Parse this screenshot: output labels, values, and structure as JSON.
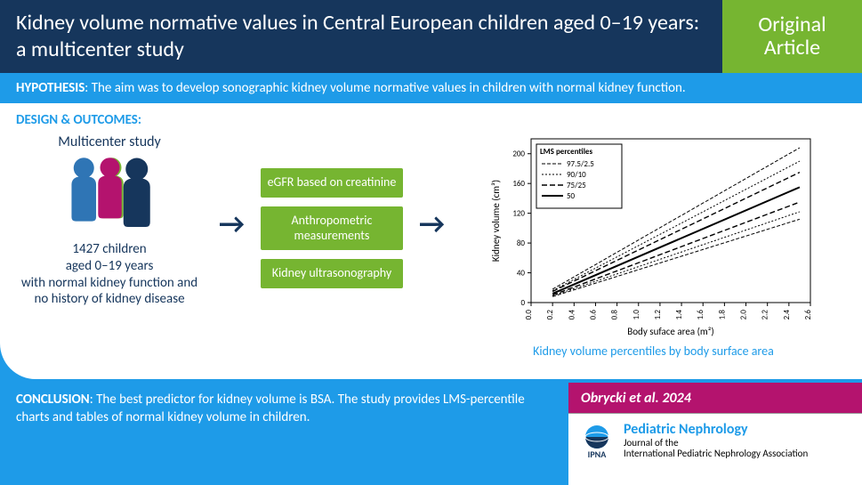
{
  "header": {
    "title": "Kidney volume normative values in Central European children aged 0–19 years: a multicenter study",
    "badge_line1": "Original",
    "badge_line2": "Article"
  },
  "hypothesis": {
    "label": "HYPOTHESIS",
    "text": ": The aim was to develop sonographic kidney volume normative values in children with normal kidney function."
  },
  "design": {
    "label": "DESIGN & OUTCOMES:",
    "study_title": "Multicenter study",
    "study_desc": "1427 children\naged 0–19 years\nwith normal kidney function and no history of kidney disease",
    "methods": [
      "eGFR based on creatinine",
      "Anthropometric measurements",
      "Kidney ultrasonography"
    ],
    "people_colors": {
      "back": "#76b531",
      "left": "#2f75b5",
      "mid": "#b4136e",
      "right": "#16365c"
    }
  },
  "chart": {
    "xlabel": "Body suface area (m²)",
    "ylabel": "Kidney volume (cm³)",
    "xlim": [
      0.0,
      2.6
    ],
    "ylim": [
      0,
      220
    ],
    "xticks": [
      0.0,
      0.2,
      0.4,
      0.6,
      0.8,
      1.0,
      1.2,
      1.4,
      1.6,
      1.8,
      2.0,
      2.2,
      2.4,
      2.6
    ],
    "yticks": [
      0,
      40,
      80,
      120,
      160,
      200
    ],
    "legend_title": "LMS percentiles",
    "series": [
      {
        "name": "97.5/2.5",
        "dash": "4,2",
        "width": 1,
        "lines": [
          {
            "y1": 18,
            "y2": 208
          },
          {
            "y1": 8,
            "y2": 112
          }
        ]
      },
      {
        "name": "90/10",
        "dash": "2,2",
        "width": 1,
        "lines": [
          {
            "y1": 16,
            "y2": 190
          },
          {
            "y1": 9,
            "y2": 122
          }
        ]
      },
      {
        "name": "75/25",
        "dash": "6,3",
        "width": 1.4,
        "lines": [
          {
            "y1": 15,
            "y2": 175
          },
          {
            "y1": 10,
            "y2": 135
          }
        ]
      },
      {
        "name": "50",
        "dash": "",
        "width": 2,
        "lines": [
          {
            "y1": 12,
            "y2": 155
          }
        ]
      }
    ],
    "x_start": 0.2,
    "x_end": 2.5,
    "axis_color": "#000",
    "line_color": "#000",
    "label_fontsize": 11,
    "tick_fontsize": 9,
    "caption": "Kidney volume percentiles by body surface area"
  },
  "conclusion": {
    "label": "CONCLUSION",
    "text": ": The best predictor for kidney volume is BSA. The study provides LMS-percentile charts and tables of normal kidney volume in children."
  },
  "ref": {
    "citation": "Obrycki et al. 2024",
    "journal_name": "Pediatric Nephrology",
    "journal_sub1": "Journal of the",
    "journal_sub2": "International Pediatric Nephrology Association",
    "logo_text": "IPNA"
  },
  "colors": {
    "navy": "#16365c",
    "blue": "#1e9be8",
    "green": "#76b531",
    "magenta": "#b4136e"
  }
}
